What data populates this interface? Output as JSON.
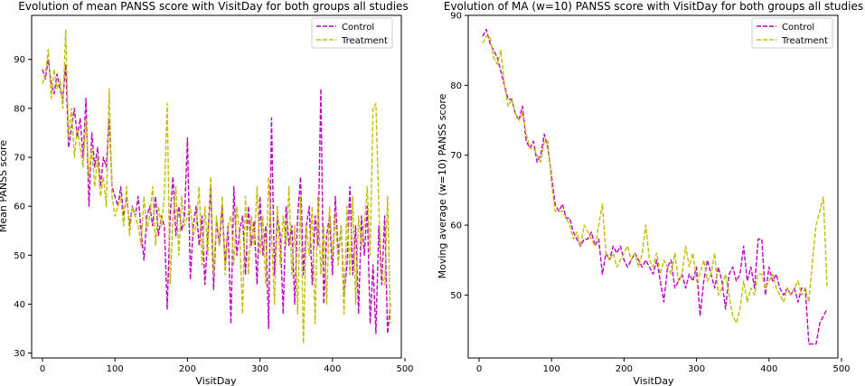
{
  "chart_data": [
    {
      "type": "line",
      "title": "Evolution of mean PANSS score with VisitDay for both groups all studies",
      "xlabel": "VisitDay",
      "ylabel": "Mean PANSS score",
      "xlim": [
        -15,
        495
      ],
      "ylim": [
        29,
        99
      ],
      "xticks": [
        0,
        100,
        200,
        300,
        400,
        500
      ],
      "yticks": [
        30,
        40,
        50,
        60,
        70,
        80,
        90
      ],
      "grid": false,
      "legend_placement": "upper-right",
      "series": [
        {
          "name": "Control",
          "color": "#bf00bf",
          "style": "dashed",
          "x": [
            0,
            4,
            8,
            12,
            16,
            20,
            24,
            28,
            32,
            36,
            40,
            44,
            48,
            52,
            56,
            60,
            64,
            68,
            72,
            76,
            80,
            84,
            88,
            92,
            96,
            100,
            104,
            108,
            112,
            116,
            120,
            124,
            128,
            132,
            136,
            140,
            144,
            148,
            152,
            156,
            160,
            164,
            168,
            172,
            176,
            180,
            184,
            188,
            192,
            196,
            200,
            204,
            208,
            212,
            216,
            220,
            224,
            228,
            232,
            236,
            240,
            244,
            248,
            252,
            256,
            260,
            264,
            268,
            272,
            276,
            280,
            284,
            288,
            292,
            296,
            300,
            304,
            308,
            312,
            316,
            320,
            324,
            328,
            332,
            336,
            340,
            344,
            348,
            352,
            356,
            360,
            364,
            368,
            372,
            376,
            380,
            384,
            388,
            392,
            396,
            400,
            404,
            408,
            412,
            416,
            420,
            424,
            428,
            432,
            436,
            440,
            444,
            448,
            452,
            456,
            460,
            464,
            468,
            472,
            476,
            480
          ],
          "y": [
            88,
            86,
            90,
            85,
            83,
            87,
            84,
            82,
            89,
            72,
            76,
            80,
            74,
            78,
            70,
            82,
            60,
            75,
            68,
            72,
            64,
            70,
            68,
            78,
            64,
            62,
            60,
            64,
            58,
            62,
            56,
            60,
            58,
            62,
            55,
            49,
            58,
            60,
            56,
            62,
            54,
            58,
            56,
            39,
            58,
            66,
            54,
            60,
            55,
            58,
            74,
            45,
            56,
            60,
            52,
            58,
            44,
            54,
            64,
            43,
            57,
            52,
            60,
            48,
            56,
            36,
            64,
            50,
            55,
            58,
            46,
            60,
            52,
            57,
            44,
            62,
            50,
            56,
            35,
            78,
            46,
            58,
            54,
            38,
            60,
            52,
            56,
            40,
            58,
            66,
            46,
            56,
            60,
            44,
            58,
            52,
            84,
            40,
            54,
            58,
            46,
            62,
            50,
            56,
            42,
            48,
            64,
            46,
            56,
            38,
            58,
            50,
            60,
            36,
            48,
            34,
            56,
            44,
            58,
            34,
            40
          ]
        },
        {
          "name": "Treatment",
          "color": "#bfbf00",
          "style": "dashed",
          "x": [
            0,
            4,
            8,
            12,
            16,
            20,
            24,
            28,
            32,
            36,
            40,
            44,
            48,
            52,
            56,
            60,
            64,
            68,
            72,
            76,
            80,
            84,
            88,
            92,
            96,
            100,
            104,
            108,
            112,
            116,
            120,
            124,
            128,
            132,
            136,
            140,
            144,
            148,
            152,
            156,
            160,
            164,
            168,
            172,
            176,
            180,
            184,
            188,
            192,
            196,
            200,
            204,
            208,
            212,
            216,
            220,
            224,
            228,
            232,
            236,
            240,
            244,
            248,
            252,
            256,
            260,
            264,
            268,
            272,
            276,
            280,
            284,
            288,
            292,
            296,
            300,
            304,
            308,
            312,
            316,
            320,
            324,
            328,
            332,
            336,
            340,
            344,
            348,
            352,
            356,
            360,
            364,
            368,
            372,
            376,
            380,
            384,
            388,
            392,
            396,
            400,
            404,
            408,
            412,
            416,
            420,
            424,
            428,
            432,
            436,
            440,
            444,
            448,
            452,
            456,
            460,
            464,
            468,
            472,
            476,
            480
          ],
          "y": [
            85,
            87,
            92,
            82,
            88,
            84,
            86,
            80,
            96,
            74,
            80,
            70,
            76,
            72,
            68,
            78,
            66,
            72,
            64,
            70,
            62,
            66,
            60,
            84,
            62,
            58,
            60,
            62,
            56,
            64,
            54,
            60,
            58,
            56,
            52,
            62,
            55,
            58,
            64,
            52,
            60,
            56,
            62,
            81,
            44,
            58,
            64,
            50,
            62,
            56,
            58,
            60,
            54,
            56,
            64,
            48,
            60,
            50,
            66,
            46,
            58,
            52,
            62,
            46,
            56,
            58,
            48,
            60,
            54,
            38,
            62,
            46,
            58,
            52,
            64,
            50,
            58,
            44,
            66,
            54,
            40,
            60,
            48,
            58,
            52,
            64,
            46,
            56,
            38,
            62,
            32,
            56,
            50,
            60,
            36,
            62,
            46,
            56,
            40,
            60,
            50,
            58,
            48,
            56,
            38,
            60,
            46,
            62,
            40,
            58,
            52,
            56,
            64,
            50,
            80,
            81,
            60,
            46,
            44,
            62,
            36
          ]
        }
      ]
    },
    {
      "type": "line",
      "title": "Evolution of MA (w=10) PANSS score with VisitDay for both groups all studies",
      "xlabel": "VisitDay",
      "ylabel": "Moving average (w=10) PANSS score",
      "xlim": [
        -15,
        495
      ],
      "ylim": [
        41,
        90
      ],
      "xticks": [
        0,
        100,
        200,
        300,
        400,
        500
      ],
      "yticks": [
        50,
        60,
        70,
        80,
        90
      ],
      "grid": false,
      "legend_placement": "upper-right",
      "series": [
        {
          "name": "Control",
          "color": "#bf00bf",
          "style": "dashed",
          "x": [
            5,
            10,
            15,
            20,
            25,
            30,
            35,
            40,
            45,
            50,
            55,
            60,
            65,
            70,
            75,
            80,
            85,
            90,
            95,
            100,
            105,
            110,
            115,
            120,
            125,
            130,
            135,
            140,
            145,
            150,
            155,
            160,
            165,
            170,
            175,
            180,
            185,
            190,
            195,
            200,
            205,
            210,
            215,
            220,
            225,
            230,
            235,
            240,
            245,
            250,
            255,
            260,
            265,
            270,
            275,
            280,
            285,
            290,
            295,
            300,
            305,
            310,
            315,
            320,
            325,
            330,
            335,
            340,
            345,
            350,
            355,
            360,
            365,
            370,
            375,
            380,
            385,
            390,
            395,
            400,
            405,
            410,
            415,
            420,
            425,
            430,
            435,
            440,
            445,
            450,
            455,
            460,
            465,
            470,
            475,
            480
          ],
          "y": [
            87,
            88,
            86,
            85,
            84,
            82,
            80,
            78,
            78,
            76,
            75,
            77,
            72,
            71,
            72,
            69,
            70,
            73,
            71,
            67,
            63,
            62,
            63,
            61,
            61,
            59,
            58,
            57,
            58,
            58,
            59,
            57,
            58,
            53,
            56,
            55,
            57,
            56,
            57,
            55,
            54,
            55,
            56,
            55,
            54,
            55,
            54,
            53,
            55,
            52,
            49,
            54,
            55,
            51,
            52,
            53,
            51,
            53,
            52,
            54,
            47,
            52,
            55,
            53,
            51,
            54,
            52,
            48,
            53,
            54,
            52,
            53,
            57,
            52,
            54,
            51,
            58,
            58,
            50,
            54,
            52,
            53,
            51,
            50,
            51,
            50,
            51,
            49,
            51,
            51,
            43,
            43,
            43,
            46,
            47,
            48
          ]
        },
        {
          "name": "Treatment",
          "color": "#bfbf00",
          "style": "dashed",
          "x": [
            5,
            10,
            15,
            20,
            25,
            30,
            35,
            40,
            45,
            50,
            55,
            60,
            65,
            70,
            75,
            80,
            85,
            90,
            95,
            100,
            105,
            110,
            115,
            120,
            125,
            130,
            135,
            140,
            145,
            150,
            155,
            160,
            165,
            170,
            175,
            180,
            185,
            190,
            195,
            200,
            205,
            210,
            215,
            220,
            225,
            230,
            235,
            240,
            245,
            250,
            255,
            260,
            265,
            270,
            275,
            280,
            285,
            290,
            295,
            300,
            305,
            310,
            315,
            320,
            325,
            330,
            335,
            340,
            345,
            350,
            355,
            360,
            365,
            370,
            375,
            380,
            385,
            390,
            395,
            400,
            405,
            410,
            415,
            420,
            425,
            430,
            435,
            440,
            445,
            450,
            455,
            460,
            465,
            470,
            475,
            480
          ],
          "y": [
            86,
            87,
            87,
            84,
            83,
            85,
            80,
            77,
            78,
            76,
            75,
            76,
            73,
            71,
            71,
            70,
            69,
            72,
            72,
            66,
            62,
            62,
            62,
            61,
            60,
            58,
            59,
            57,
            60,
            59,
            58,
            57,
            60,
            63,
            56,
            55,
            56,
            54,
            55,
            56,
            57,
            55,
            56,
            54,
            56,
            60,
            55,
            54,
            56,
            53,
            55,
            54,
            53,
            56,
            52,
            53,
            57,
            54,
            56,
            52,
            53,
            55,
            52,
            53,
            56,
            50,
            51,
            53,
            50,
            47,
            46,
            48,
            52,
            49,
            51,
            50,
            53,
            53,
            51,
            52,
            53,
            51,
            50,
            49,
            51,
            50,
            51,
            52,
            50,
            51,
            49,
            55,
            60,
            62,
            64,
            51
          ]
        }
      ]
    }
  ]
}
